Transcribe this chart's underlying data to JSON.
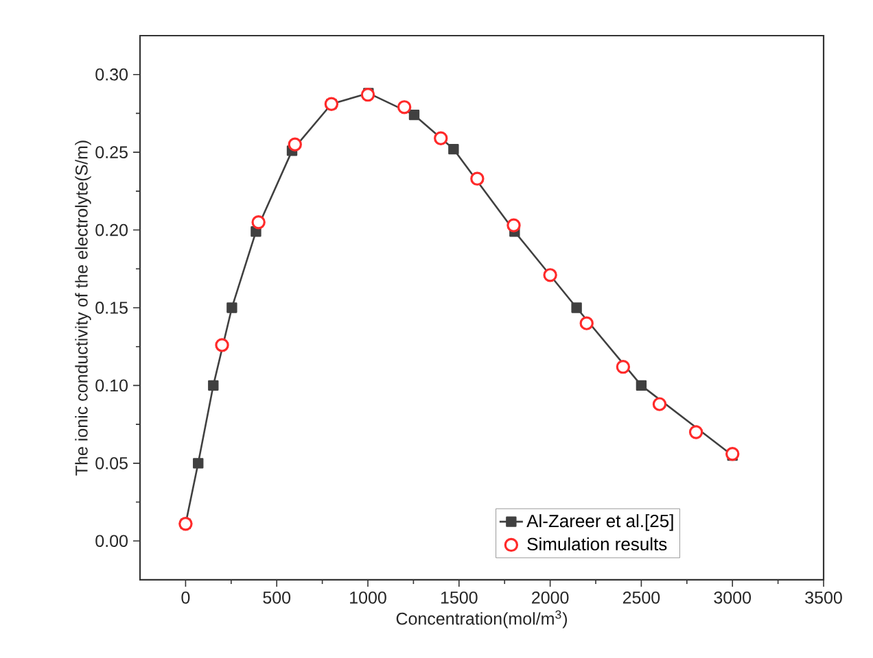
{
  "chart_data": {
    "type": "line",
    "xlabel": "Concentration(mol/m$^{3}$)",
    "ylabel": "The ionic conductivity of the electrolyte(S/m)",
    "xlim": [
      -250,
      3500
    ],
    "ylim": [
      -0.025,
      0.325
    ],
    "xticks": [
      0,
      500,
      1000,
      1500,
      2000,
      2500,
      3000,
      3500
    ],
    "yticks": [
      {
        "value": 0,
        "label": "0.00"
      },
      {
        "value": 0.05,
        "label": "0.05"
      },
      {
        "value": 0.1,
        "label": "0.10"
      },
      {
        "value": 0.15,
        "label": "0.15"
      },
      {
        "value": 0.2,
        "label": "0.20"
      },
      {
        "value": 0.25,
        "label": "0.25"
      },
      {
        "value": 0.3,
        "label": "0.30"
      }
    ],
    "grid": false,
    "legend": "bottom right",
    "series": [
      {
        "name": "Al-Zareer et al.[25]",
        "marker": "square",
        "line_style": "solid",
        "color": "#404040",
        "x": [
          0,
          69,
          152,
          254,
          386,
          584,
          800,
          1003,
          1254,
          1470,
          1805,
          2145,
          2500,
          3000
        ],
        "values": [
          0.011,
          0.05,
          0.1,
          0.15,
          0.199,
          0.251,
          0.281,
          0.288,
          0.274,
          0.252,
          0.199,
          0.15,
          0.1,
          0.055
        ]
      },
      {
        "name": "Simulation results",
        "type": "scatter",
        "marker": "circle",
        "color": "#ff2a2a",
        "x": [
          0,
          200,
          400,
          600,
          800,
          1000,
          1200,
          1400,
          1600,
          1800,
          2000,
          2200,
          2400,
          2600,
          2800,
          3000
        ],
        "values": [
          0.011,
          0.126,
          0.205,
          0.255,
          0.281,
          0.287,
          0.279,
          0.259,
          0.233,
          0.203,
          0.171,
          0.14,
          0.112,
          0.088,
          0.07,
          0.056
        ]
      }
    ]
  }
}
